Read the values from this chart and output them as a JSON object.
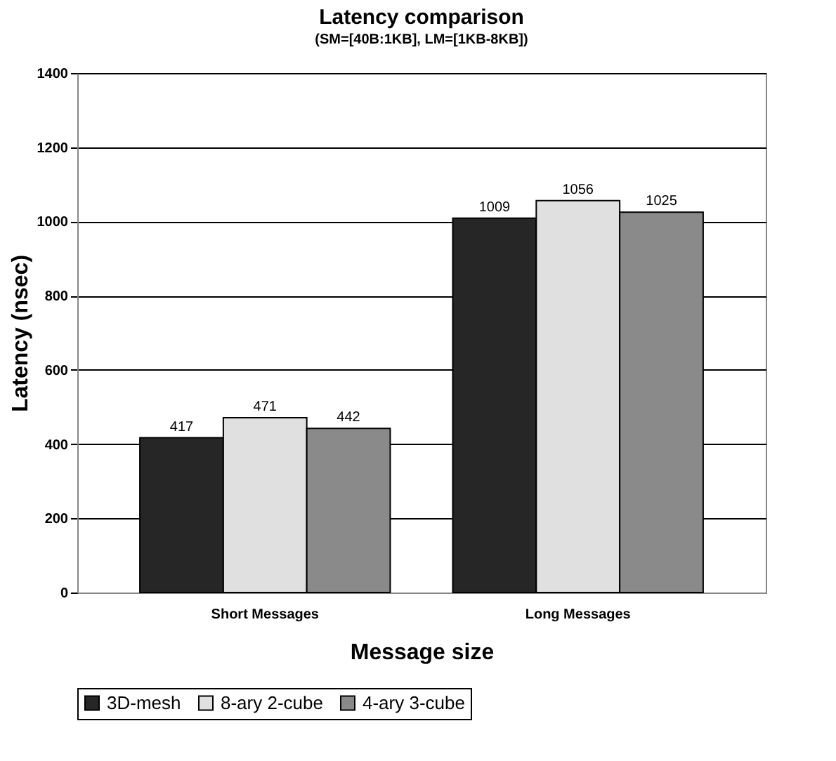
{
  "chart_data": {
    "type": "bar",
    "title": "Latency comparison",
    "subtitle": "(SM=[40B:1KB], LM=[1KB-8KB])",
    "xlabel": "Message size",
    "ylabel": "Latency (nsec)",
    "categories": [
      "Short Messages",
      "Long Messages"
    ],
    "series": [
      {
        "name": "3D-mesh",
        "color": "#262626",
        "values": [
          417,
          1009
        ]
      },
      {
        "name": "8-ary 2-cube",
        "color": "#e0e0e0",
        "values": [
          471,
          1056
        ]
      },
      {
        "name": "4-ary 3-cube",
        "color": "#8a8a8a",
        "values": [
          442,
          1025
        ]
      }
    ],
    "ylim": [
      0,
      1400
    ],
    "yticks": [
      0,
      200,
      400,
      600,
      800,
      1000,
      1200,
      1400
    ],
    "grid": "y",
    "data_labels": true,
    "legend": "bottom"
  }
}
